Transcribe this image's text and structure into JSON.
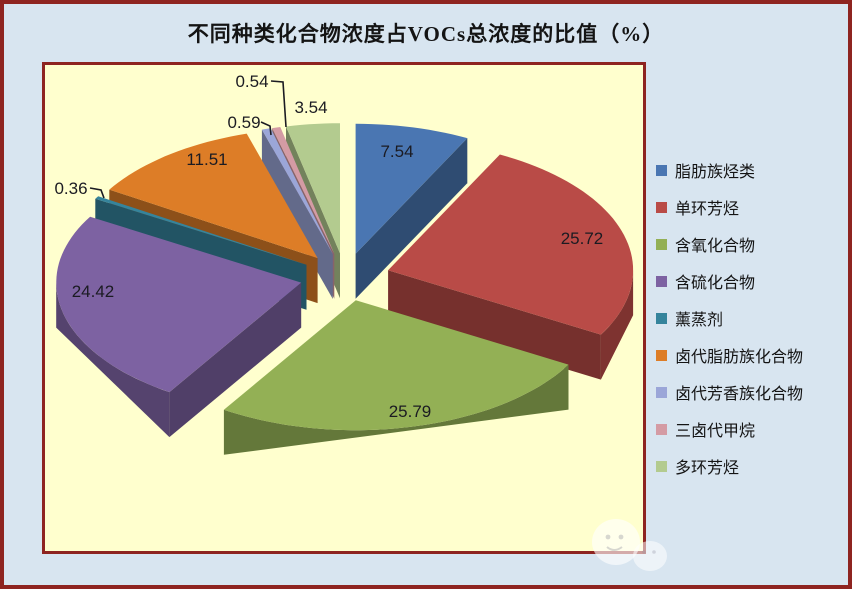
{
  "title": "不同种类化合物浓度占VOCs总浓度的比值（%）",
  "chart_data": {
    "type": "pie",
    "style": "3d-exploded",
    "unit": "%",
    "start_angle_deg": 0,
    "direction": "clockwise",
    "title": "不同种类化合物浓度占VOCs总浓度的比值（%）",
    "legend_position": "right",
    "grid": false,
    "series": [
      {
        "label": "脂肪族烃类",
        "value": 7.54,
        "display": "7.54",
        "color": "#4a76b2"
      },
      {
        "label": "单环芳烃",
        "value": 25.72,
        "display": "25.72",
        "color": "#b94b47"
      },
      {
        "label": "含氧化合物",
        "value": 25.79,
        "display": "25.79",
        "color": "#93b055"
      },
      {
        "label": "含硫化合物",
        "value": 24.42,
        "display": "24.42",
        "color": "#7d62a2"
      },
      {
        "label": "薰蒸剂",
        "value": 0.36,
        "display": "0.36",
        "color": "#35849c"
      },
      {
        "label": "卤代脂肪族化合物",
        "value": 11.51,
        "display": "11.51",
        "color": "#dd7d27"
      },
      {
        "label": "卤代芳香族化合物",
        "value": 0.59,
        "display": "0.59",
        "color": "#9ba6d8"
      },
      {
        "label": "三卤代甲烷",
        "value": 0.54,
        "display": "0.54",
        "color": "#d49ba4"
      },
      {
        "label": "多环芳烃",
        "value": 3.54,
        "display": "3.54",
        "color": "#b3cb8f"
      }
    ],
    "colors": {
      "outer_background": "#d8e5f0",
      "plot_background": "#ffffce",
      "frame_border": "#8e2420",
      "label_text": "#1b1b22",
      "title_text": "#141414"
    }
  }
}
